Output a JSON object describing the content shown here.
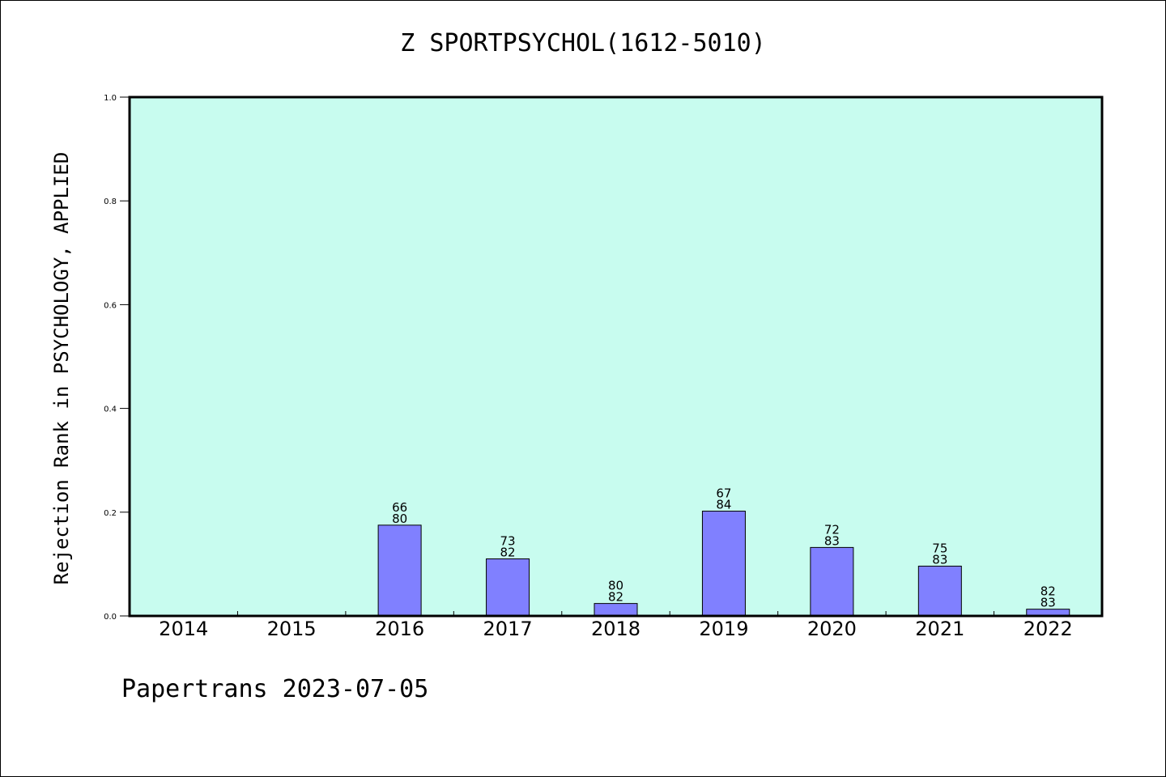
{
  "chart_data": {
    "type": "bar",
    "title": "Z SPORTPSYCHOL(1612-5010)",
    "ylabel": "Rejection Rank in PSYCHOLOGY, APPLIED",
    "xlabel": "",
    "ylim": [
      0,
      1.0
    ],
    "yticks": [
      "0.0",
      "0.2",
      "0.4",
      "0.6",
      "0.8",
      "1.0"
    ],
    "categories": [
      "2014",
      "2015",
      "2016",
      "2017",
      "2018",
      "2019",
      "2020",
      "2021",
      "2022"
    ],
    "values": [
      null,
      null,
      0.175,
      0.11,
      0.024,
      0.202,
      0.132,
      0.096,
      0.013
    ],
    "bar_labels": [
      null,
      null,
      [
        "66",
        "80"
      ],
      [
        "73",
        "82"
      ],
      [
        "80",
        "82"
      ],
      [
        "67",
        "84"
      ],
      [
        "72",
        "83"
      ],
      [
        "75",
        "83"
      ],
      [
        "82",
        "83"
      ]
    ],
    "grid": false,
    "colors": {
      "plot_background": "#c8fcef",
      "bar": "#8080ff"
    }
  },
  "footer": "Papertrans 2023-07-05"
}
